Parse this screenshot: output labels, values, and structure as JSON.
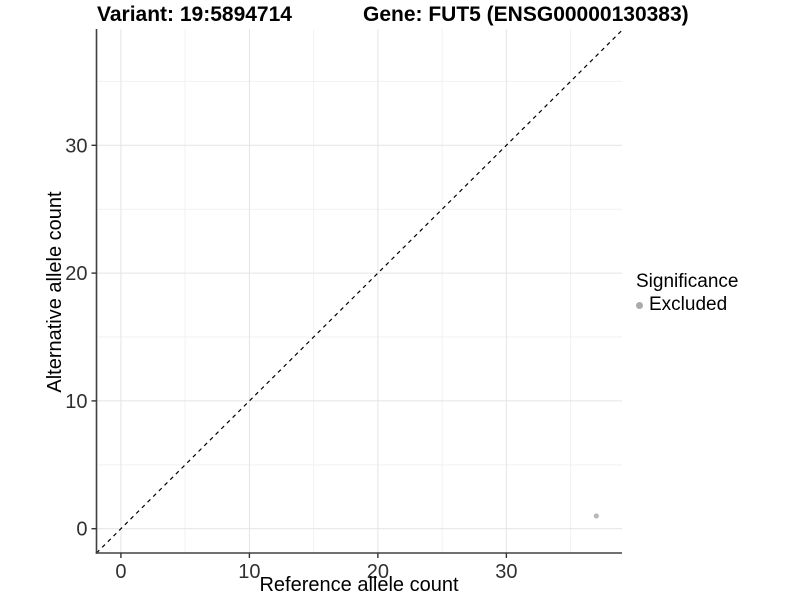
{
  "title": {
    "variant": "Variant: 19:5894714",
    "gene": "Gene: FUT5 (ENSG00000130383)"
  },
  "axes": {
    "xlabel": "Reference allele count",
    "ylabel": "Alternative allele count"
  },
  "legend": {
    "title": "Significance",
    "items": [
      {
        "label": "Excluded",
        "color": "#ababab"
      }
    ]
  },
  "colors": {
    "background": "#ffffff",
    "axis_line": "#404040",
    "tick_mark": "#333333",
    "tick_label": "#303030",
    "grid_major": "#e4e4e4",
    "grid_minor": "#f1f1f1",
    "reference_line": "#000000",
    "point": "#b8b8b8"
  },
  "chart_data": {
    "type": "scatter",
    "title": "Variant: 19:5894714 / Gene: FUT5 (ENSG00000130383)",
    "xlabel": "Reference allele count",
    "ylabel": "Alternative allele count",
    "xlim": [
      -1.9,
      39.0
    ],
    "ylim": [
      -1.9,
      39.1
    ],
    "x_ticks": [
      0,
      10,
      20,
      30
    ],
    "y_ticks": [
      0,
      10,
      20,
      30
    ],
    "x_minor_ticks": [
      5,
      15,
      25,
      35
    ],
    "y_minor_ticks": [
      5,
      15,
      25,
      35
    ],
    "grid": true,
    "legend_position": "right",
    "reference_line": {
      "type": "identity",
      "equation": "y = x",
      "style": "dashed",
      "color": "#000000"
    },
    "series": [
      {
        "name": "Excluded",
        "color": "#b8b8b8",
        "points": [
          {
            "x": 37,
            "y": 1
          }
        ]
      }
    ]
  }
}
